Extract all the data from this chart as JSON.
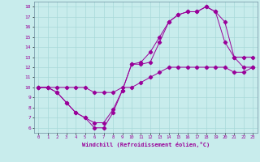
{
  "xlabel": "Windchill (Refroidissement éolien,°C)",
  "bg_color": "#c8ecec",
  "line_color": "#990099",
  "grid_color": "#a8d8d8",
  "xlim": [
    -0.5,
    23.5
  ],
  "ylim": [
    5.5,
    18.5
  ],
  "xticks": [
    0,
    1,
    2,
    3,
    4,
    5,
    6,
    7,
    8,
    9,
    10,
    11,
    12,
    13,
    14,
    15,
    16,
    17,
    18,
    19,
    20,
    21,
    22,
    23
  ],
  "yticks": [
    6,
    7,
    8,
    9,
    10,
    11,
    12,
    13,
    14,
    15,
    16,
    17,
    18
  ],
  "line1_x": [
    0,
    1,
    2,
    3,
    4,
    5,
    6,
    7,
    8,
    9,
    10,
    11,
    12,
    13,
    14,
    15,
    16,
    17,
    18,
    19,
    20,
    21,
    22,
    23
  ],
  "line1_y": [
    10,
    10,
    9.5,
    8.5,
    7.5,
    7.0,
    6.0,
    6.0,
    7.5,
    9.7,
    12.3,
    12.3,
    12.5,
    14.5,
    16.5,
    17.2,
    17.5,
    17.5,
    18.0,
    17.5,
    14.5,
    13.0,
    13.0,
    13.0
  ],
  "line2_x": [
    0,
    1,
    2,
    3,
    4,
    5,
    6,
    7,
    8,
    9,
    10,
    11,
    12,
    13,
    14,
    15,
    16,
    17,
    18,
    19,
    20,
    21,
    22,
    23
  ],
  "line2_y": [
    10,
    10,
    9.5,
    8.5,
    7.5,
    7.0,
    6.5,
    6.5,
    7.8,
    9.7,
    12.3,
    12.5,
    13.5,
    15.0,
    16.5,
    17.2,
    17.5,
    17.5,
    18.0,
    17.5,
    16.5,
    13.0,
    12.0,
    12.0
  ],
  "line3_x": [
    0,
    1,
    2,
    3,
    4,
    5,
    6,
    7,
    8,
    9,
    10,
    11,
    12,
    13,
    14,
    15,
    16,
    17,
    18,
    19,
    20,
    21,
    22,
    23
  ],
  "line3_y": [
    10,
    10,
    10,
    10,
    10,
    10,
    9.5,
    9.5,
    9.5,
    10,
    10,
    10.5,
    11,
    11.5,
    12,
    12,
    12,
    12,
    12,
    12,
    12,
    11.5,
    11.5,
    12
  ]
}
